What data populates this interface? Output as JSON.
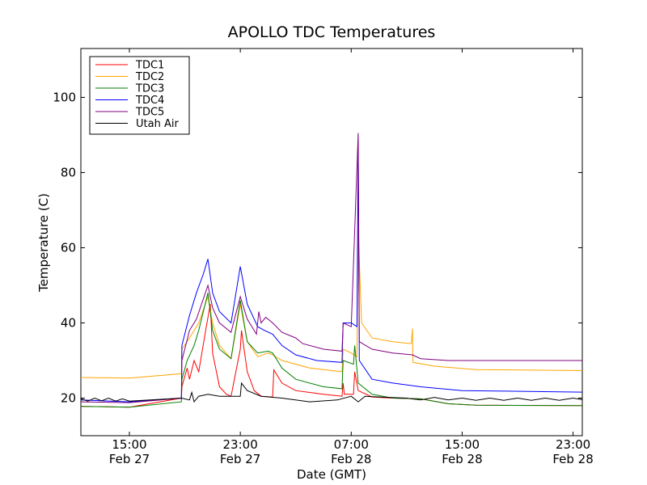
{
  "chart_data": {
    "type": "line",
    "title": "APOLLO TDC Temperatures",
    "xlabel": "Date (GMT)",
    "ylabel": "Temperature (C)",
    "xlim": [
      "Feb 27 11:30",
      "Feb 28 23:40"
    ],
    "ylim": [
      10,
      113
    ],
    "x_ticks": [
      {
        "at": "Feb 27 15:00",
        "line1": "15:00",
        "line2": "Feb 27"
      },
      {
        "at": "Feb 27 23:00",
        "line1": "23:00",
        "line2": "Feb 27"
      },
      {
        "at": "Feb 28 07:00",
        "line1": "07:00",
        "line2": "Feb 28"
      },
      {
        "at": "Feb 28 15:00",
        "line1": "15:00",
        "line2": "Feb 28"
      },
      {
        "at": "Feb 28 23:00",
        "line1": "23:00",
        "line2": "Feb 28"
      }
    ],
    "y_ticks": [
      20,
      40,
      60,
      80,
      100
    ],
    "legend_position": "top-left",
    "grid": false,
    "series": [
      {
        "name": "TDC1",
        "color": "#ff0000",
        "points": [
          [
            "Feb 27 11:30",
            17.8
          ],
          [
            "Feb 27 15:00",
            17.6
          ],
          [
            "Feb 27 18:00",
            19.5
          ],
          [
            "Feb 27 18:45",
            20.0
          ],
          [
            "Feb 27 18:47",
            23.0
          ],
          [
            "Feb 27 19:10",
            28.0
          ],
          [
            "Feb 27 19:20",
            25.0
          ],
          [
            "Feb 27 19:40",
            30.0
          ],
          [
            "Feb 27 20:00",
            27.0
          ],
          [
            "Feb 27 20:30",
            38.0
          ],
          [
            "Feb 27 20:50",
            45.0
          ],
          [
            "Feb 27 21:00",
            32.0
          ],
          [
            "Feb 27 21:30",
            23.0
          ],
          [
            "Feb 27 22:00",
            21.0
          ],
          [
            "Feb 27 22:20",
            20.5
          ],
          [
            "Feb 27 23:00",
            33.0
          ],
          [
            "Feb 27 23:05",
            38.0
          ],
          [
            "Feb 27 23:30",
            27.0
          ],
          [
            "Feb 28 00:00",
            22.0
          ],
          [
            "Feb 28 00:30",
            20.5
          ],
          [
            "Feb 28 01:20",
            20.3
          ],
          [
            "Feb 28 01:25",
            27.5
          ],
          [
            "Feb 28 02:00",
            24.0
          ],
          [
            "Feb 28 03:00",
            22.0
          ],
          [
            "Feb 28 05:00",
            21.0
          ],
          [
            "Feb 28 06:20",
            20.5
          ],
          [
            "Feb 28 06:25",
            24.0
          ],
          [
            "Feb 28 06:30",
            21.0
          ],
          [
            "Feb 28 07:10",
            21.0
          ],
          [
            "Feb 28 07:15",
            27.0
          ],
          [
            "Feb 28 07:30",
            22.0
          ],
          [
            "Feb 28 08:30",
            20.3
          ],
          [
            "Feb 28 10:00",
            20.0
          ],
          [
            "Feb 28 12:00",
            19.8
          ],
          [
            "Feb 28 14:00",
            18.5
          ],
          [
            "Feb 28 16:00",
            18.1
          ],
          [
            "Feb 28 23:40",
            18.0
          ]
        ]
      },
      {
        "name": "TDC2",
        "color": "#ffa500",
        "points": [
          [
            "Feb 27 11:30",
            25.5
          ],
          [
            "Feb 27 15:00",
            25.3
          ],
          [
            "Feb 27 18:45",
            26.5
          ],
          [
            "Feb 27 18:47",
            33.0
          ],
          [
            "Feb 27 19:20",
            36.0
          ],
          [
            "Feb 27 20:00",
            40.0
          ],
          [
            "Feb 27 20:40",
            47.0
          ],
          [
            "Feb 27 21:00",
            40.0
          ],
          [
            "Feb 27 21:30",
            34.0
          ],
          [
            "Feb 27 22:20",
            30.5
          ],
          [
            "Feb 27 23:00",
            45.0
          ],
          [
            "Feb 27 23:30",
            35.0
          ],
          [
            "Feb 28 00:15",
            31.0
          ],
          [
            "Feb 28 01:00",
            32.0
          ],
          [
            "Feb 28 01:20",
            31.5
          ],
          [
            "Feb 28 02:00",
            30.0
          ],
          [
            "Feb 28 04:00",
            28.0
          ],
          [
            "Feb 28 06:20",
            27.0
          ],
          [
            "Feb 28 06:25",
            33.0
          ],
          [
            "Feb 28 07:00",
            32.0
          ],
          [
            "Feb 28 07:25",
            31.0
          ],
          [
            "Feb 28 07:30",
            65.0
          ],
          [
            "Feb 28 07:45",
            40.0
          ],
          [
            "Feb 28 08:30",
            36.0
          ],
          [
            "Feb 28 10:00",
            35.0
          ],
          [
            "Feb 28 11:20",
            34.5
          ],
          [
            "Feb 28 11:25",
            38.5
          ],
          [
            "Feb 28 11:27",
            29.5
          ],
          [
            "Feb 28 13:00",
            28.5
          ],
          [
            "Feb 28 16:00",
            27.6
          ],
          [
            "Feb 28 23:40",
            27.3
          ]
        ]
      },
      {
        "name": "TDC3",
        "color": "#008000",
        "points": [
          [
            "Feb 27 11:30",
            17.8
          ],
          [
            "Feb 27 15:00",
            17.6
          ],
          [
            "Feb 27 18:45",
            19.0
          ],
          [
            "Feb 27 18:47",
            25.0
          ],
          [
            "Feb 27 19:10",
            30.0
          ],
          [
            "Feb 27 19:40",
            34.0
          ],
          [
            "Feb 27 20:00",
            38.0
          ],
          [
            "Feb 27 20:40",
            48.0
          ],
          [
            "Feb 27 21:00",
            38.0
          ],
          [
            "Feb 27 21:30",
            33.0
          ],
          [
            "Feb 27 22:20",
            30.5
          ],
          [
            "Feb 27 23:00",
            46.0
          ],
          [
            "Feb 27 23:30",
            35.0
          ],
          [
            "Feb 28 00:15",
            32.0
          ],
          [
            "Feb 28 01:00",
            32.5
          ],
          [
            "Feb 28 01:20",
            32.0
          ],
          [
            "Feb 28 02:00",
            28.0
          ],
          [
            "Feb 28 03:00",
            25.0
          ],
          [
            "Feb 28 05:00",
            23.0
          ],
          [
            "Feb 28 06:20",
            22.5
          ],
          [
            "Feb 28 06:25",
            30.0
          ],
          [
            "Feb 28 07:10",
            29.0
          ],
          [
            "Feb 28 07:15",
            34.0
          ],
          [
            "Feb 28 07:30",
            24.0
          ],
          [
            "Feb 28 08:30",
            21.0
          ],
          [
            "Feb 28 10:00",
            20.0
          ],
          [
            "Feb 28 12:00",
            19.8
          ],
          [
            "Feb 28 14:00",
            18.5
          ],
          [
            "Feb 28 16:00",
            18.1
          ],
          [
            "Feb 28 23:40",
            18.0
          ]
        ]
      },
      {
        "name": "TDC4",
        "color": "#0000ff",
        "points": [
          [
            "Feb 27 11:30",
            19.5
          ],
          [
            "Feb 27 15:00",
            19.0
          ],
          [
            "Feb 27 18:45",
            20.0
          ],
          [
            "Feb 27 18:47",
            34.0
          ],
          [
            "Feb 27 19:20",
            42.0
          ],
          [
            "Feb 27 19:50",
            48.0
          ],
          [
            "Feb 27 20:20",
            53.0
          ],
          [
            "Feb 27 20:40",
            57.0
          ],
          [
            "Feb 27 21:00",
            48.0
          ],
          [
            "Feb 27 21:30",
            43.0
          ],
          [
            "Feb 27 22:20",
            40.0
          ],
          [
            "Feb 27 23:00",
            55.0
          ],
          [
            "Feb 27 23:30",
            45.0
          ],
          [
            "Feb 28 00:15",
            39.0
          ],
          [
            "Feb 28 00:45",
            38.0
          ],
          [
            "Feb 28 01:20",
            37.0
          ],
          [
            "Feb 28 02:00",
            34.0
          ],
          [
            "Feb 28 03:00",
            31.5
          ],
          [
            "Feb 28 04:30",
            30.0
          ],
          [
            "Feb 28 06:20",
            29.5
          ],
          [
            "Feb 28 06:25",
            40.0
          ],
          [
            "Feb 28 07:00",
            40.0
          ],
          [
            "Feb 28 07:25",
            39.0
          ],
          [
            "Feb 28 07:30",
            88.0
          ],
          [
            "Feb 28 07:35",
            30.0
          ],
          [
            "Feb 28 08:30",
            25.0
          ],
          [
            "Feb 28 10:00",
            24.0
          ],
          [
            "Feb 28 12:00",
            23.0
          ],
          [
            "Feb 28 15:00",
            22.0
          ],
          [
            "Feb 28 23:40",
            21.6
          ]
        ]
      },
      {
        "name": "TDC5",
        "color": "#800080",
        "points": [
          [
            "Feb 27 11:30",
            19.0
          ],
          [
            "Feb 27 15:00",
            18.8
          ],
          [
            "Feb 27 18:45",
            20.0
          ],
          [
            "Feb 27 18:47",
            30.0
          ],
          [
            "Feb 27 19:20",
            38.0
          ],
          [
            "Feb 27 19:50",
            41.0
          ],
          [
            "Feb 27 20:40",
            50.0
          ],
          [
            "Feb 27 21:00",
            44.0
          ],
          [
            "Feb 27 21:30",
            40.0
          ],
          [
            "Feb 27 22:20",
            37.5
          ],
          [
            "Feb 27 23:00",
            47.0
          ],
          [
            "Feb 27 23:30",
            41.0
          ],
          [
            "Feb 28 00:10",
            37.0
          ],
          [
            "Feb 28 00:20",
            43.0
          ],
          [
            "Feb 28 00:30",
            40.0
          ],
          [
            "Feb 28 00:50",
            41.5
          ],
          [
            "Feb 28 01:20",
            40.0
          ],
          [
            "Feb 28 02:00",
            37.5
          ],
          [
            "Feb 28 03:00",
            36.0
          ],
          [
            "Feb 28 03:30",
            34.5
          ],
          [
            "Feb 28 05:00",
            33.0
          ],
          [
            "Feb 28 06:20",
            32.5
          ],
          [
            "Feb 28 06:25",
            40.0
          ],
          [
            "Feb 28 07:00",
            39.0
          ],
          [
            "Feb 28 07:30",
            90.5
          ],
          [
            "Feb 28 07:35",
            35.0
          ],
          [
            "Feb 28 08:30",
            33.0
          ],
          [
            "Feb 28 10:00",
            32.0
          ],
          [
            "Feb 28 11:25",
            31.5
          ],
          [
            "Feb 28 12:00",
            30.5
          ],
          [
            "Feb 28 14:00",
            30.0
          ],
          [
            "Feb 28 23:40",
            30.0
          ]
        ]
      },
      {
        "name": "Utah Air",
        "color": "#000000",
        "points": [
          [
            "Feb 27 11:30",
            19.8
          ],
          [
            "Feb 27 12:00",
            19.2
          ],
          [
            "Feb 27 12:30",
            20.0
          ],
          [
            "Feb 27 13:00",
            19.3
          ],
          [
            "Feb 27 13:30",
            20.0
          ],
          [
            "Feb 27 14:00",
            19.2
          ],
          [
            "Feb 27 14:30",
            19.8
          ],
          [
            "Feb 27 15:00",
            19.2
          ],
          [
            "Feb 27 16:00",
            19.4
          ],
          [
            "Feb 27 18:45",
            20.0
          ],
          [
            "Feb 27 19:20",
            19.5
          ],
          [
            "Feb 27 19:30",
            21.5
          ],
          [
            "Feb 27 19:40",
            19.0
          ],
          [
            "Feb 27 20:00",
            20.5
          ],
          [
            "Feb 27 20:40",
            21.0
          ],
          [
            "Feb 27 21:30",
            20.5
          ],
          [
            "Feb 27 22:20",
            20.5
          ],
          [
            "Feb 27 23:00",
            20.5
          ],
          [
            "Feb 27 23:05",
            24.0
          ],
          [
            "Feb 27 23:30",
            22.0
          ],
          [
            "Feb 28 00:30",
            20.5
          ],
          [
            "Feb 28 02:00",
            20.0
          ],
          [
            "Feb 28 04:00",
            19.0
          ],
          [
            "Feb 28 06:00",
            19.5
          ],
          [
            "Feb 28 07:00",
            20.5
          ],
          [
            "Feb 28 07:30",
            19.0
          ],
          [
            "Feb 28 08:00",
            20.5
          ],
          [
            "Feb 28 09:00",
            20.3
          ],
          [
            "Feb 28 11:00",
            20.0
          ],
          [
            "Feb 28 12:00",
            19.5
          ],
          [
            "Feb 28 13:00",
            20.2
          ],
          [
            "Feb 28 14:00",
            19.5
          ],
          [
            "Feb 28 15:00",
            20.0
          ],
          [
            "Feb 28 16:00",
            19.4
          ],
          [
            "Feb 28 17:00",
            20.0
          ],
          [
            "Feb 28 18:00",
            19.4
          ],
          [
            "Feb 28 19:00",
            20.0
          ],
          [
            "Feb 28 20:00",
            19.4
          ],
          [
            "Feb 28 21:00",
            20.0
          ],
          [
            "Feb 28 22:00",
            19.4
          ],
          [
            "Feb 28 23:00",
            20.0
          ],
          [
            "Feb 28 23:40",
            19.6
          ]
        ]
      }
    ]
  }
}
